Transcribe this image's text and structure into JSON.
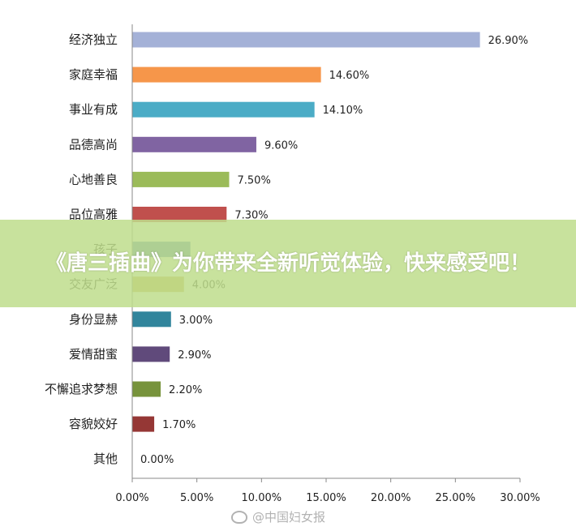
{
  "chart_data": {
    "type": "bar",
    "orientation": "horizontal",
    "categories": [
      "经济独立",
      "家庭幸福",
      "事业有成",
      "品德高尚",
      "心地善良",
      "品位高雅",
      "孩子",
      "交友广泛",
      "身份显赫",
      "爱情甜蜜",
      "不懈追求梦想",
      "容貌姣好",
      "其他"
    ],
    "values": [
      26.9,
      14.6,
      14.1,
      9.6,
      7.5,
      7.3,
      4.5,
      4.0,
      3.0,
      2.9,
      2.2,
      1.7,
      0.0
    ],
    "value_labels": [
      "26.90%",
      "14.60%",
      "14.10%",
      "9.60%",
      "7.50%",
      "7.30%",
      "",
      "4.00%",
      "3.00%",
      "2.90%",
      "2.20%",
      "1.70%",
      "0.00%"
    ],
    "colors": [
      "#a4b1d7",
      "#f6964a",
      "#4bacc6",
      "#8064a2",
      "#9bbb59",
      "#c0504d",
      "#4f81bd",
      "#c6b04a",
      "#31859c",
      "#604a7b",
      "#77933c",
      "#953735",
      "#7f7f7f"
    ],
    "x_ticks": [
      "0.00%",
      "5.00%",
      "10.00%",
      "15.00%",
      "20.00%",
      "25.00%",
      "30.00%"
    ],
    "xlim": [
      0,
      30
    ],
    "grid": false,
    "title": "",
    "xlabel": "",
    "ylabel": ""
  },
  "overlay": {
    "banner_text": "《唐三插曲》为你带来全新听觉体验，快来感受吧！",
    "watermark_text": "@中国妇女报"
  }
}
